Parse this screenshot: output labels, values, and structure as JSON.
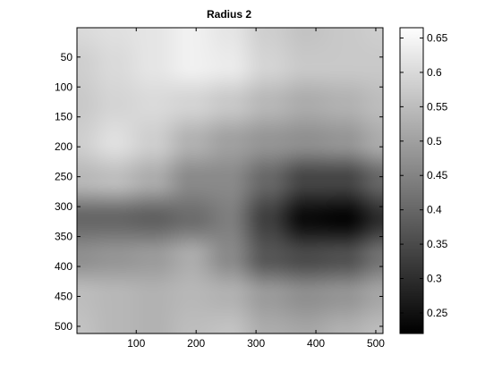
{
  "chart_data": {
    "type": "heatmap",
    "title": "Radius 2",
    "colormap": "gray",
    "x_ticks": [
      "100",
      "200",
      "300",
      "400",
      "500"
    ],
    "x_tick_values": [
      100,
      200,
      300,
      400,
      500
    ],
    "y_ticks": [
      "50",
      "100",
      "150",
      "200",
      "250",
      "300",
      "350",
      "400",
      "450",
      "500"
    ],
    "y_tick_values": [
      50,
      100,
      150,
      200,
      250,
      300,
      350,
      400,
      450,
      500
    ],
    "xlim": [
      1,
      512
    ],
    "ylim": [
      1,
      512
    ],
    "y_direction": "reverse",
    "colorbar": {
      "ticks": [
        "0.25",
        "0.3",
        "0.35",
        "0.4",
        "0.45",
        "0.5",
        "0.55",
        "0.6",
        "0.65"
      ],
      "tick_values": [
        0.25,
        0.3,
        0.35,
        0.4,
        0.45,
        0.5,
        0.55,
        0.6,
        0.65
      ],
      "range": [
        0.22,
        0.665
      ]
    },
    "x_grid": [
      1,
      64,
      128,
      192,
      256,
      320,
      384,
      448,
      512
    ],
    "y_grid": [
      1,
      64,
      128,
      192,
      256,
      320,
      384,
      448,
      512
    ],
    "z": [
      [
        0.6,
        0.61,
        0.62,
        0.64,
        0.62,
        0.58,
        0.56,
        0.57,
        0.58
      ],
      [
        0.58,
        0.6,
        0.62,
        0.64,
        0.63,
        0.59,
        0.57,
        0.57,
        0.57
      ],
      [
        0.57,
        0.59,
        0.6,
        0.59,
        0.57,
        0.54,
        0.52,
        0.53,
        0.55
      ],
      [
        0.58,
        0.61,
        0.58,
        0.53,
        0.5,
        0.48,
        0.47,
        0.48,
        0.52
      ],
      [
        0.54,
        0.55,
        0.52,
        0.46,
        0.46,
        0.4,
        0.34,
        0.34,
        0.4
      ],
      [
        0.4,
        0.4,
        0.39,
        0.41,
        0.44,
        0.33,
        0.24,
        0.23,
        0.3
      ],
      [
        0.47,
        0.48,
        0.49,
        0.52,
        0.46,
        0.37,
        0.35,
        0.36,
        0.42
      ],
      [
        0.55,
        0.54,
        0.53,
        0.54,
        0.53,
        0.49,
        0.47,
        0.48,
        0.51
      ],
      [
        0.56,
        0.54,
        0.53,
        0.55,
        0.56,
        0.52,
        0.51,
        0.53,
        0.55
      ]
    ]
  }
}
